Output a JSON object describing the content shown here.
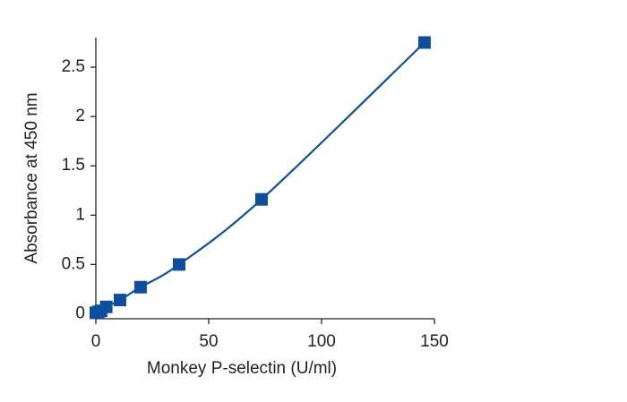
{
  "chart_data": {
    "type": "scatter",
    "x_label": "Monkey P-selectin (U/ml)",
    "y_label": "Absorbance at 450 nm",
    "series": [
      {
        "color": "#0d4f9c",
        "x": [
          0,
          1.1,
          2.3,
          4.6,
          10.7,
          19.8,
          36.9,
          73.4,
          145.6
        ],
        "values": [
          0.01,
          0.02,
          0.03,
          0.07,
          0.14,
          0.27,
          0.5,
          1.16,
          2.75
        ]
      }
    ],
    "xlim": [
      0,
      150
    ],
    "xticks": [
      0,
      50,
      100,
      150
    ],
    "ylim": [
      -0.05,
      2.8
    ],
    "yticks": [
      0,
      0.5,
      1,
      1.5,
      2,
      2.5
    ],
    "grid": false
  }
}
